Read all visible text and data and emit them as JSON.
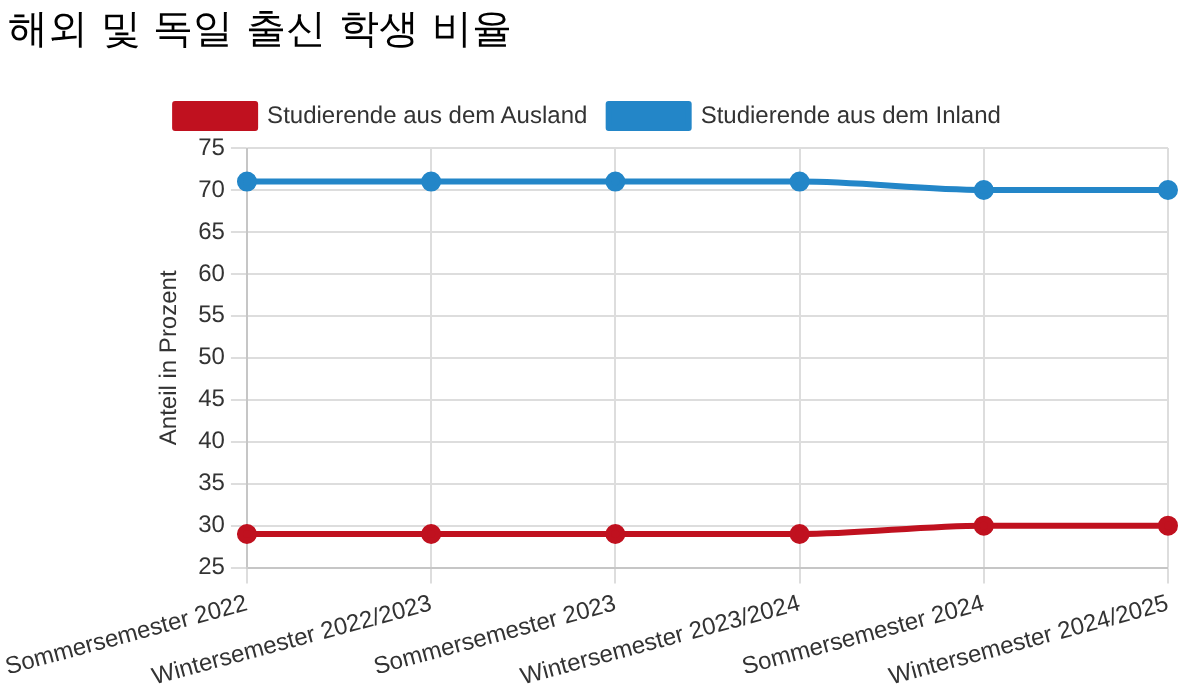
{
  "chart_data": {
    "type": "line",
    "title": "해외 및 독일 출신 학생 비율",
    "ylabel": "Anteil in Prozent",
    "categories": [
      "Sommersemester 2022",
      "Wintersemester 2022/2023",
      "Sommersemester 2023",
      "Wintersemester 2023/2024",
      "Sommersemester 2024",
      "Wintersemester 2024/2025"
    ],
    "series": [
      {
        "name": "Studierende aus dem Ausland",
        "color": "#c0111f",
        "values": [
          29,
          29,
          29,
          29,
          30,
          30
        ]
      },
      {
        "name": "Studierende aus dem Inland",
        "color": "#2386c8",
        "values": [
          71,
          71,
          71,
          71,
          70,
          70
        ]
      }
    ],
    "ylim": [
      25,
      75
    ],
    "yticks": [
      25,
      30,
      35,
      40,
      45,
      50,
      55,
      60,
      65,
      70,
      75
    ],
    "grid": true,
    "legend": "top",
    "marker": "circle",
    "line_style": "solid"
  }
}
